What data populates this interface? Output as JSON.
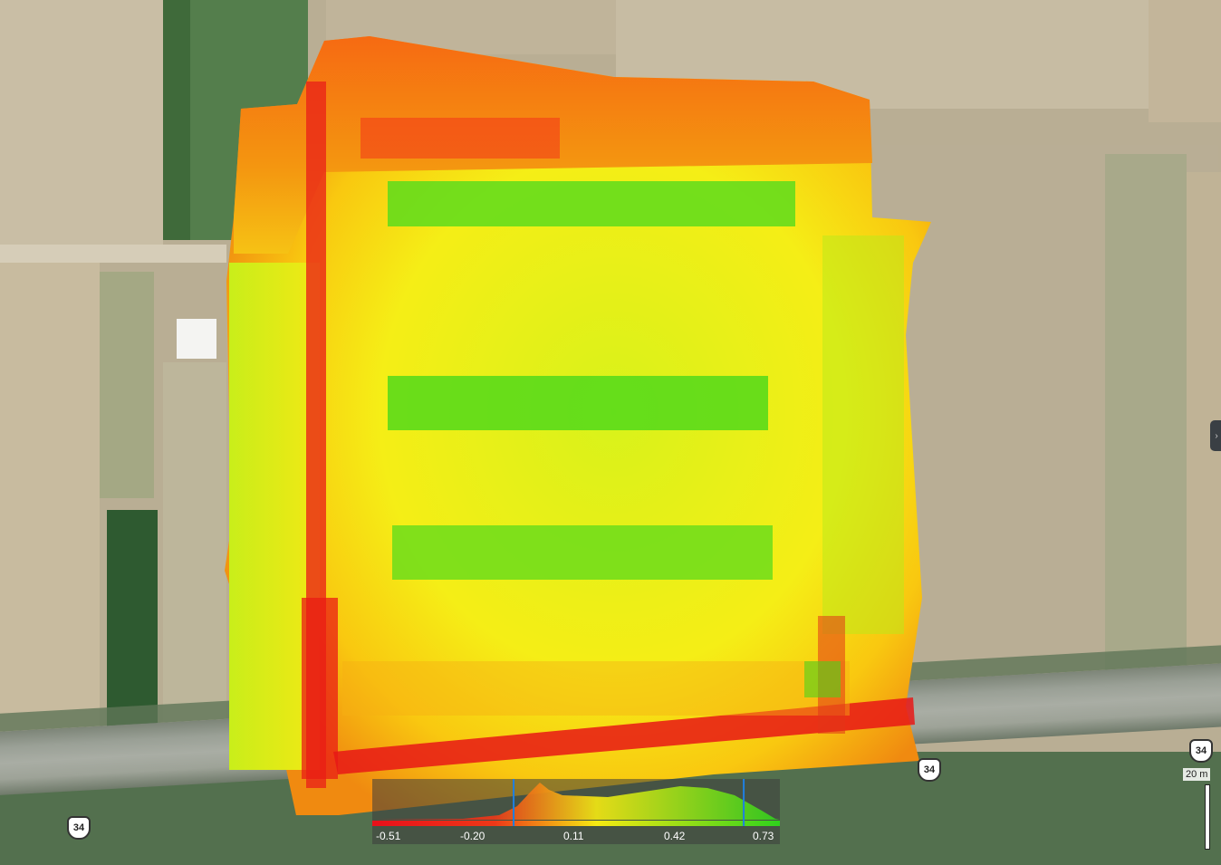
{
  "map": {
    "route_shields": [
      {
        "label": "34"
      },
      {
        "label": "34"
      },
      {
        "label": "34"
      }
    ],
    "panel_toggle_icon": "chevron-right-icon"
  },
  "histogram": {
    "ticks": [
      "-0.51",
      "-0.20",
      "0.11",
      "0.42",
      "0.73"
    ],
    "range_min": -0.51,
    "range_max": 0.73,
    "lower_marker_value": -0.08,
    "upper_marker_value": 0.62,
    "colors": {
      "low": "#e8101a",
      "mid": "#f6ea12",
      "high": "#2fd21c"
    }
  },
  "scale_bar": {
    "label": "20 m"
  }
}
